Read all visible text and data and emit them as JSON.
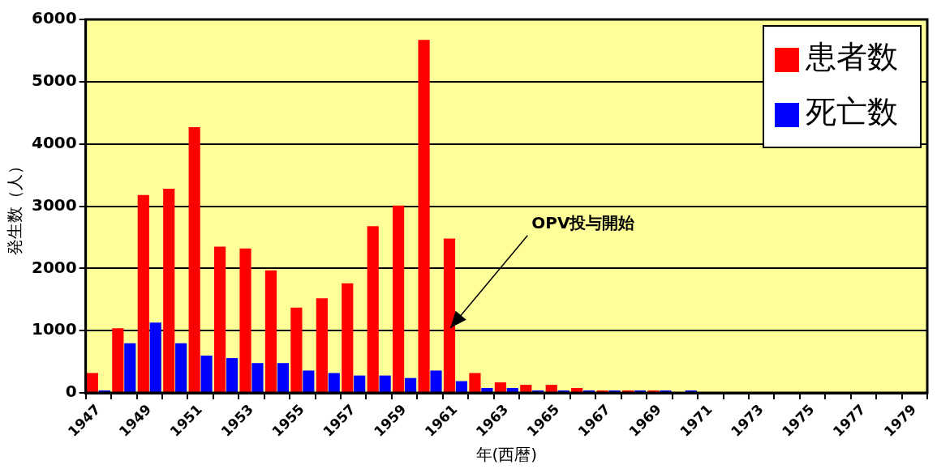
{
  "chart_data": {
    "type": "bar",
    "xlabel": "年(西暦)",
    "ylabel": "発生数（人）",
    "categories": [
      "1947",
      null,
      "1949",
      null,
      "1951",
      null,
      "1953",
      null,
      "1955",
      null,
      "1957",
      null,
      "1959",
      null,
      "1961",
      null,
      "1963",
      null,
      "1965",
      null,
      "1967",
      null,
      "1969",
      null,
      "1971",
      null,
      "1973",
      null,
      "1975",
      null,
      "1977",
      null,
      "1979"
    ],
    "series": [
      {
        "name": "患者数",
        "color": "#ff0000",
        "values": [
          320,
          1040,
          3180,
          3280,
          4270,
          2350,
          2320,
          1970,
          1370,
          1520,
          1760,
          2680,
          3010,
          5670,
          2480,
          320,
          170,
          130,
          130,
          80,
          40,
          40,
          40,
          null,
          null,
          null,
          null,
          null,
          null,
          null,
          null,
          null,
          null
        ]
      },
      {
        "name": "死亡数",
        "color": "#0000ff",
        "values": [
          40,
          800,
          1130,
          800,
          600,
          560,
          480,
          480,
          360,
          320,
          280,
          280,
          240,
          360,
          190,
          80,
          80,
          40,
          40,
          40,
          40,
          40,
          40,
          40,
          null,
          null,
          null,
          null,
          null,
          null,
          null,
          null,
          null
        ]
      }
    ],
    "ylim": [
      0,
      6000
    ],
    "yticks": [
      0,
      1000,
      2000,
      3000,
      4000,
      5000,
      6000
    ],
    "grid": "y",
    "legend": "top right",
    "annotations": [
      "OPV投与開始"
    ]
  }
}
